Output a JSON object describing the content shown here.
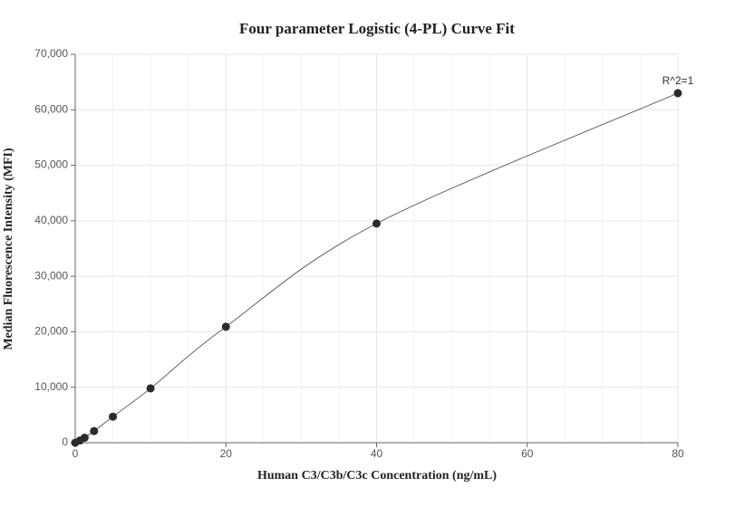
{
  "chart_data": {
    "type": "scatter",
    "title": "Four parameter Logistic (4-PL) Curve Fit",
    "x_label": "Human C3/C3b/C3c Concentration (ng/mL)",
    "y_label": "Median Fluorescence Intensity (MFI)",
    "annotation": "R^2=1",
    "color": "#2b2b2b",
    "x": [
      0,
      0.625,
      1.25,
      2.5,
      5,
      10,
      20,
      40,
      80
    ],
    "values": [
      0,
      400,
      900,
      2100,
      4700,
      9800,
      20900,
      39500,
      63000
    ],
    "xlim": [
      0,
      80
    ],
    "xticks": [
      0,
      20,
      40,
      60,
      80
    ],
    "ylim": [
      0,
      70000
    ],
    "yticks": [
      0,
      {
        "value": 10000,
        "label": "10,000"
      },
      {
        "value": 20000,
        "label": "20,000"
      },
      {
        "value": 30000,
        "label": "30,000"
      },
      {
        "value": 40000,
        "label": "40,000"
      },
      {
        "value": 50000,
        "label": "50,000"
      },
      {
        "value": 60000,
        "label": "60,000"
      },
      {
        "value": 70000,
        "label": "70,000"
      }
    ],
    "grid": true
  }
}
